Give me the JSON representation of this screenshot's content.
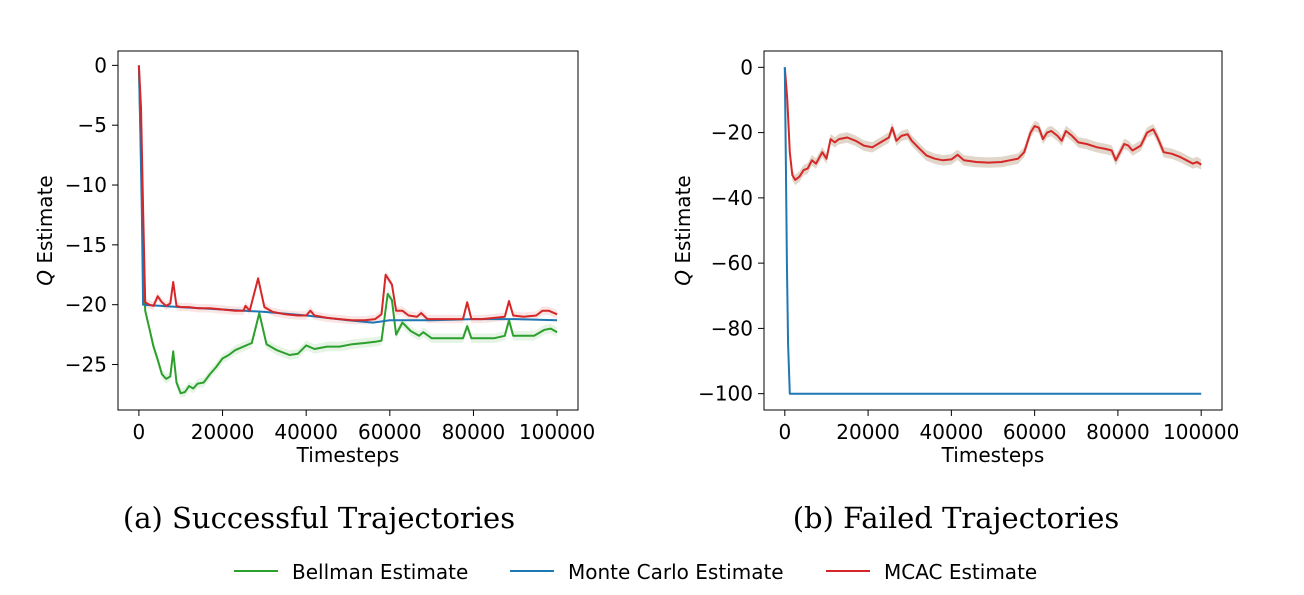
{
  "colors": {
    "bellman": "#2ca02c",
    "monte_carlo": "#1f77b4",
    "mcac": "#d62728"
  },
  "legend": {
    "items": [
      {
        "label": "Bellman Estimate",
        "color_key": "bellman"
      },
      {
        "label": "Monte Carlo Estimate",
        "color_key": "monte_carlo"
      },
      {
        "label": "MCAC Estimate",
        "color_key": "mcac"
      }
    ]
  },
  "chart_data": [
    {
      "type": "line",
      "caption": "(a)  Successful Trajectories",
      "xlabel": "Timesteps",
      "ylabel_prefix": "Q",
      "ylabel_suffix": " Estimate",
      "xlim": [
        -5000,
        105000
      ],
      "ylim": [
        -28.8,
        1.2
      ],
      "xticks": [
        0,
        20000,
        40000,
        60000,
        80000,
        100000
      ],
      "xtick_labels": [
        "0",
        "20000",
        "40000",
        "60000",
        "80000",
        "100000"
      ],
      "yticks": [
        0,
        -5,
        -10,
        -15,
        -20,
        -25
      ],
      "ytick_labels": [
        "0",
        "−5",
        "−10",
        "−15",
        "−20",
        "−25"
      ],
      "grid": false,
      "series": [
        {
          "name": "Bellman Estimate",
          "color_key": "bellman",
          "band": 0.4,
          "points": [
            [
              0,
              0
            ],
            [
              800,
              -12
            ],
            [
              1500,
              -20.5
            ],
            [
              2500,
              -22
            ],
            [
              3500,
              -23.5
            ],
            [
              4500,
              -24.6
            ],
            [
              5500,
              -25.8
            ],
            [
              6500,
              -26.2
            ],
            [
              7500,
              -26
            ],
            [
              8200,
              -23.9
            ],
            [
              9000,
              -26.5
            ],
            [
              10000,
              -27.4
            ],
            [
              11000,
              -27.3
            ],
            [
              12000,
              -26.8
            ],
            [
              13000,
              -27
            ],
            [
              14000,
              -26.6
            ],
            [
              15500,
              -26.5
            ],
            [
              17000,
              -25.8
            ],
            [
              18500,
              -25.2
            ],
            [
              20000,
              -24.5
            ],
            [
              21500,
              -24.2
            ],
            [
              23000,
              -23.8
            ],
            [
              25000,
              -23.5
            ],
            [
              27000,
              -23.2
            ],
            [
              28800,
              -20.7
            ],
            [
              30500,
              -23.3
            ],
            [
              33000,
              -23.8
            ],
            [
              36000,
              -24.2
            ],
            [
              38000,
              -24.1
            ],
            [
              40000,
              -23.4
            ],
            [
              42000,
              -23.7
            ],
            [
              45000,
              -23.5
            ],
            [
              48000,
              -23.5
            ],
            [
              51000,
              -23.3
            ],
            [
              54000,
              -23.2
            ],
            [
              56500,
              -23.1
            ],
            [
              58000,
              -23
            ],
            [
              59500,
              -19.1
            ],
            [
              60500,
              -19.6
            ],
            [
              61500,
              -22.5
            ],
            [
              63000,
              -21.5
            ],
            [
              65000,
              -22.2
            ],
            [
              67000,
              -22.6
            ],
            [
              68000,
              -22.3
            ],
            [
              70000,
              -22.8
            ],
            [
              72000,
              -22.8
            ],
            [
              75000,
              -22.8
            ],
            [
              77500,
              -22.8
            ],
            [
              78500,
              -21.8
            ],
            [
              79500,
              -22.8
            ],
            [
              82000,
              -22.8
            ],
            [
              85000,
              -22.8
            ],
            [
              87500,
              -22.6
            ],
            [
              88500,
              -21.3
            ],
            [
              89500,
              -22.6
            ],
            [
              92000,
              -22.6
            ],
            [
              94500,
              -22.6
            ],
            [
              97000,
              -22.1
            ],
            [
              98500,
              -22
            ],
            [
              100000,
              -22.3
            ]
          ]
        },
        {
          "name": "Monte Carlo Estimate",
          "color_key": "monte_carlo",
          "band": 0,
          "points": [
            [
              0,
              0
            ],
            [
              300,
              -5
            ],
            [
              700,
              -12
            ],
            [
              1000,
              -20
            ],
            [
              10000,
              -20.2
            ],
            [
              20000,
              -20.4
            ],
            [
              30000,
              -20.6
            ],
            [
              40000,
              -20.9
            ],
            [
              50000,
              -21.3
            ],
            [
              56000,
              -21.5
            ],
            [
              60000,
              -21.3
            ],
            [
              70000,
              -21.3
            ],
            [
              80000,
              -21.2
            ],
            [
              90000,
              -21.2
            ],
            [
              100000,
              -21.3
            ]
          ]
        },
        {
          "name": "MCAC Estimate",
          "color_key": "mcac",
          "band": 0.35,
          "points": [
            [
              0,
              0
            ],
            [
              500,
              -3.5
            ],
            [
              1000,
              -12
            ],
            [
              1500,
              -19.8
            ],
            [
              2500,
              -20
            ],
            [
              3500,
              -20.1
            ],
            [
              4500,
              -19.3
            ],
            [
              5500,
              -19.8
            ],
            [
              6500,
              -20.1
            ],
            [
              7500,
              -19.9
            ],
            [
              8200,
              -18.1
            ],
            [
              9000,
              -20.1
            ],
            [
              10000,
              -20.2
            ],
            [
              12000,
              -20.2
            ],
            [
              14000,
              -20.3
            ],
            [
              17000,
              -20.3
            ],
            [
              20000,
              -20.4
            ],
            [
              23000,
              -20.5
            ],
            [
              25000,
              -20.5
            ],
            [
              25500,
              -20.1
            ],
            [
              26500,
              -20.5
            ],
            [
              28500,
              -17.8
            ],
            [
              30000,
              -20.2
            ],
            [
              32000,
              -20.6
            ],
            [
              35000,
              -20.8
            ],
            [
              38000,
              -20.9
            ],
            [
              40000,
              -20.9
            ],
            [
              41000,
              -20.5
            ],
            [
              42000,
              -20.9
            ],
            [
              45000,
              -21.1
            ],
            [
              48000,
              -21.2
            ],
            [
              51000,
              -21.3
            ],
            [
              54000,
              -21.3
            ],
            [
              56500,
              -21.2
            ],
            [
              58000,
              -20.8
            ],
            [
              59000,
              -17.5
            ],
            [
              60500,
              -18.3
            ],
            [
              61500,
              -20.5
            ],
            [
              63000,
              -20.5
            ],
            [
              64500,
              -20.9
            ],
            [
              66500,
              -21
            ],
            [
              67500,
              -20.7
            ],
            [
              69000,
              -21.2
            ],
            [
              72000,
              -21.2
            ],
            [
              75000,
              -21.2
            ],
            [
              77500,
              -21.2
            ],
            [
              78500,
              -19.8
            ],
            [
              79500,
              -21.2
            ],
            [
              82000,
              -21.2
            ],
            [
              85000,
              -21.1
            ],
            [
              87500,
              -21
            ],
            [
              88500,
              -19.7
            ],
            [
              89500,
              -20.9
            ],
            [
              92000,
              -21
            ],
            [
              95000,
              -20.9
            ],
            [
              96500,
              -20.5
            ],
            [
              98000,
              -20.5
            ],
            [
              100000,
              -20.8
            ]
          ]
        }
      ]
    },
    {
      "type": "line",
      "caption": "(b)  Failed Trajectories",
      "xlabel": "Timesteps",
      "ylabel_prefix": "Q",
      "ylabel_suffix": " Estimate",
      "xlim": [
        -5000,
        105000
      ],
      "ylim": [
        -105,
        5
      ],
      "xticks": [
        0,
        20000,
        40000,
        60000,
        80000,
        100000
      ],
      "xtick_labels": [
        "0",
        "20000",
        "40000",
        "60000",
        "80000",
        "100000"
      ],
      "yticks": [
        0,
        -20,
        -40,
        -60,
        -80,
        -100
      ],
      "ytick_labels": [
        "0",
        "−20",
        "−40",
        "−60",
        "−80",
        "−100"
      ],
      "grid": false,
      "series": [
        {
          "name": "MCAC Estimate (band)",
          "color_key": "mcac",
          "band": 1.6,
          "band_color": "#c9b59c",
          "points": [
            [
              0,
              0
            ],
            [
              600,
              -10
            ],
            [
              1200,
              -26
            ],
            [
              1800,
              -33
            ],
            [
              2500,
              -34.5
            ],
            [
              3500,
              -33.5
            ],
            [
              4500,
              -31.5
            ],
            [
              5500,
              -31
            ],
            [
              6500,
              -28.5
            ],
            [
              7500,
              -29.5
            ],
            [
              9000,
              -26
            ],
            [
              10000,
              -28
            ],
            [
              11000,
              -22
            ],
            [
              12000,
              -23
            ],
            [
              13000,
              -22
            ],
            [
              15000,
              -21.5
            ],
            [
              17000,
              -22.5
            ],
            [
              19000,
              -24
            ],
            [
              21000,
              -24.5
            ],
            [
              23000,
              -23
            ],
            [
              25000,
              -21.5
            ],
            [
              25800,
              -18.5
            ],
            [
              26800,
              -22.5
            ],
            [
              28000,
              -21
            ],
            [
              29500,
              -20.5
            ],
            [
              30500,
              -22.5
            ],
            [
              32000,
              -24.5
            ],
            [
              34000,
              -27
            ],
            [
              36000,
              -28
            ],
            [
              38000,
              -28.5
            ],
            [
              40000,
              -28.2
            ],
            [
              41500,
              -26.8
            ],
            [
              43000,
              -28.5
            ],
            [
              46000,
              -29
            ],
            [
              49000,
              -29.2
            ],
            [
              52000,
              -29
            ],
            [
              54000,
              -28.5
            ],
            [
              56000,
              -28
            ],
            [
              57500,
              -26
            ],
            [
              59000,
              -20
            ],
            [
              60000,
              -18
            ],
            [
              61000,
              -18.5
            ],
            [
              62000,
              -22
            ],
            [
              63000,
              -20
            ],
            [
              64000,
              -19.5
            ],
            [
              65500,
              -21
            ],
            [
              66500,
              -22.5
            ],
            [
              67500,
              -19.5
            ],
            [
              69000,
              -21
            ],
            [
              70500,
              -23
            ],
            [
              72500,
              -23.5
            ],
            [
              75000,
              -24.5
            ],
            [
              77000,
              -25
            ],
            [
              78500,
              -25.5
            ],
            [
              79500,
              -28.5
            ],
            [
              80500,
              -26
            ],
            [
              81500,
              -23.5
            ],
            [
              82500,
              -24
            ],
            [
              83500,
              -25.5
            ],
            [
              85500,
              -24
            ],
            [
              87000,
              -20
            ],
            [
              88500,
              -19
            ],
            [
              89500,
              -21.5
            ],
            [
              91000,
              -26
            ],
            [
              93000,
              -26.5
            ],
            [
              95000,
              -27.5
            ],
            [
              96500,
              -28.5
            ],
            [
              98000,
              -29.5
            ],
            [
              99000,
              -29
            ],
            [
              100000,
              -29.8
            ]
          ]
        },
        {
          "name": "Monte Carlo Estimate",
          "color_key": "monte_carlo",
          "band": 0,
          "points": [
            [
              0,
              0
            ],
            [
              250,
              -30
            ],
            [
              500,
              -60
            ],
            [
              800,
              -85
            ],
            [
              1200,
              -100
            ],
            [
              100000,
              -100
            ]
          ]
        }
      ]
    }
  ]
}
